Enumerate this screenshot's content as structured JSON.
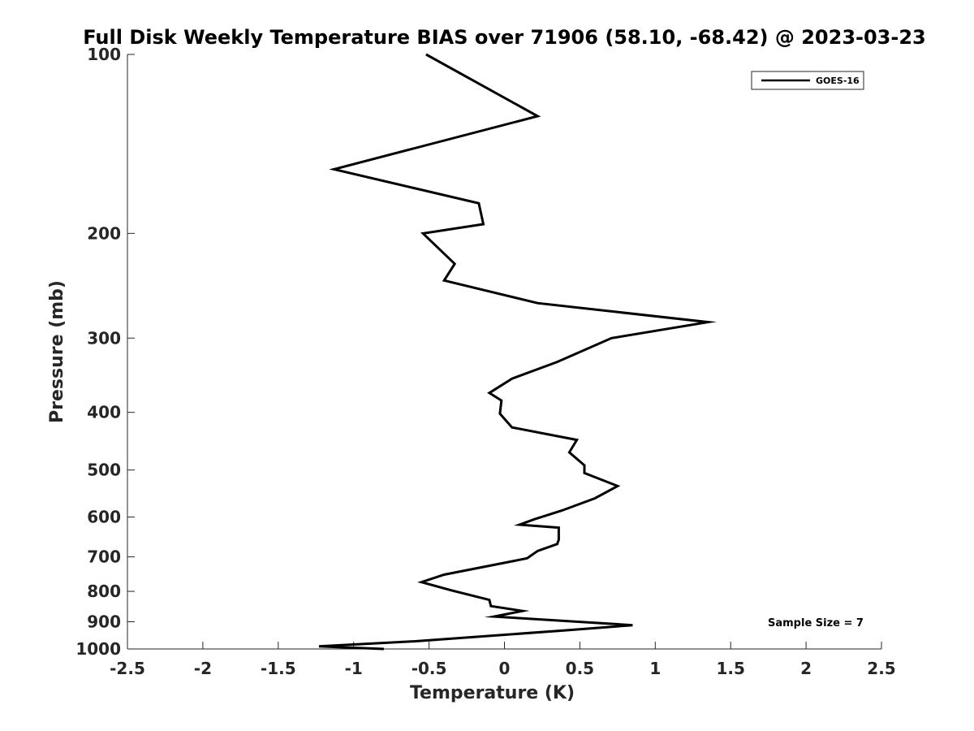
{
  "chart_data": {
    "type": "line",
    "title": "Full Disk Weekly Temperature BIAS over 71906 (58.10, -68.42) @ 2023-03-23",
    "xlabel": "Temperature (K)",
    "ylabel": "Pressure (mb)",
    "xlim": [
      -2.5,
      2.5
    ],
    "ylim": [
      100,
      1000
    ],
    "y_scale": "log",
    "y_reversed": true,
    "x_ticks": [
      "-2.5",
      "-2",
      "-1.5",
      "-1",
      "-0.5",
      "0",
      "0.5",
      "1",
      "1.5",
      "2",
      "2.5"
    ],
    "y_ticks": [
      "100",
      "200",
      "300",
      "400",
      "500",
      "600",
      "700",
      "800",
      "900",
      "1000"
    ],
    "grid": false,
    "legend_position": "top-right",
    "series": [
      {
        "name": "GOES-16",
        "color": "#000000",
        "x": [
          -0.52,
          0.22,
          -1.13,
          -0.17,
          -0.14,
          -0.54,
          -0.33,
          -0.4,
          0.22,
          1.35,
          0.71,
          0.35,
          0.05,
          -0.1,
          -0.02,
          -0.03,
          0.05,
          0.48,
          0.43,
          0.53,
          0.53,
          0.75,
          0.6,
          0.38,
          0.2,
          0.1,
          0.36,
          0.36,
          0.35,
          0.22,
          0.15,
          -0.4,
          -0.55,
          -0.35,
          -0.1,
          -0.09,
          0.12,
          -0.07,
          0.85,
          0.42,
          -0.6,
          -1.23,
          -0.8
        ],
        "y": [
          100,
          127,
          156,
          178,
          193,
          200,
          225,
          240,
          262,
          282,
          300,
          329,
          351,
          371,
          382,
          402,
          424,
          445,
          467,
          491,
          506,
          532,
          558,
          585,
          605,
          618,
          625,
          655,
          666,
          684,
          704,
          750,
          772,
          797,
          827,
          847,
          863,
          882,
          912,
          930,
          971,
          990,
          1000
        ]
      }
    ],
    "annotations": [
      "Sample Size = 7"
    ]
  }
}
